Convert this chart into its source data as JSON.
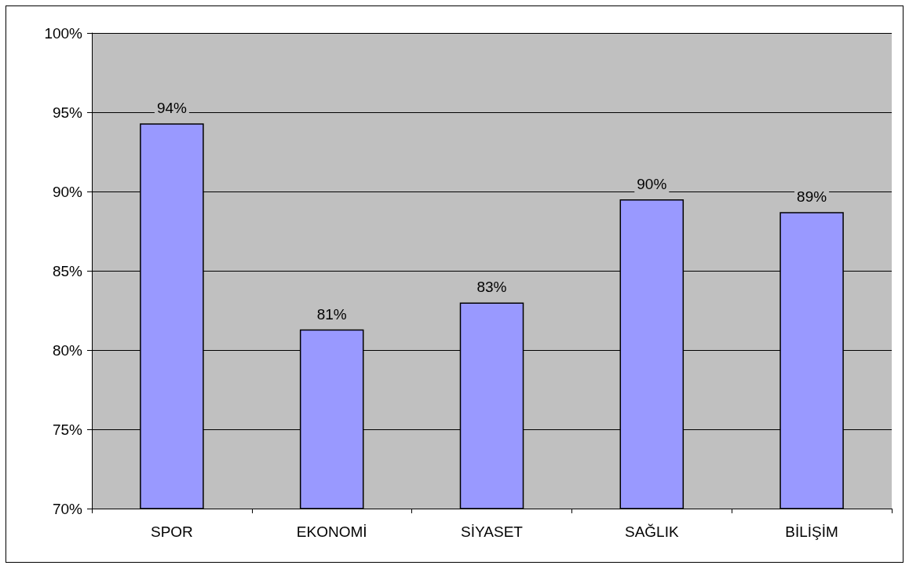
{
  "chart_data": {
    "type": "bar",
    "categories": [
      "SPOR",
      "EKONOMİ",
      "SİYASET",
      "SAĞLIK",
      "BİLİŞİM"
    ],
    "values": [
      94.3,
      81.3,
      83,
      89.5,
      88.7
    ],
    "value_labels": [
      "94%",
      "81%",
      "83%",
      "90%",
      "89%"
    ],
    "color": "#9999ff",
    "ylim": [
      70,
      100
    ],
    "yticks": [
      {
        "value": 70,
        "label": "70%"
      },
      {
        "value": 75,
        "label": "75%"
      },
      {
        "value": 80,
        "label": "80%"
      },
      {
        "value": 85,
        "label": "85%"
      },
      {
        "value": 90,
        "label": "90%"
      },
      {
        "value": 95,
        "label": "95%"
      },
      {
        "value": 100,
        "label": "100%"
      }
    ],
    "grid": "y"
  }
}
